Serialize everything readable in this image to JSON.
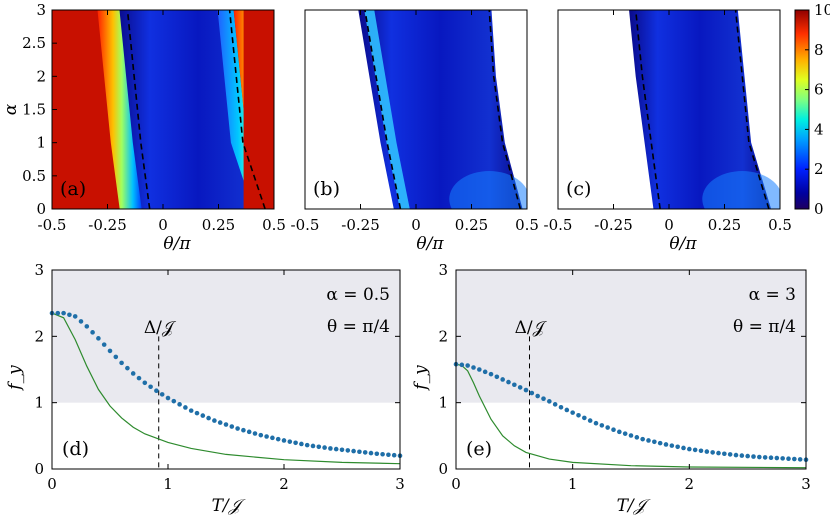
{
  "colors": {
    "shade": "#e9e9ef",
    "dots": "#1f6fa8",
    "line": "#2e8b2e",
    "dashed": "#000000",
    "empty": "#ffffff"
  },
  "chart_data": [
    {
      "type": "heatmap",
      "panel": "(a)",
      "xlabel": "θ/π",
      "ylabel": "α",
      "xlim": [
        -0.5,
        0.5
      ],
      "ylim": [
        0,
        3
      ],
      "xticks": [
        "-0.5",
        "-0.25",
        "0",
        "0.25",
        "0.5"
      ],
      "yticks": [
        "0",
        "0.5",
        "1",
        "1.5",
        "2",
        "2.5",
        "3"
      ],
      "dashed_curves": [
        {
          "alpha": [
            0,
            1,
            2,
            3
          ],
          "theta": [
            -0.06,
            -0.1,
            -0.13,
            -0.16
          ]
        },
        {
          "alpha": [
            0,
            1,
            2,
            3
          ],
          "theta": [
            0.46,
            0.36,
            0.33,
            0.3
          ]
        }
      ]
    },
    {
      "type": "heatmap",
      "panel": "(b)",
      "xlabel": "θ/π",
      "xlim": [
        -0.5,
        0.5
      ],
      "ylim": [
        0,
        3
      ],
      "xticks": [
        "-0.5",
        "-0.25",
        "0",
        "0.25",
        "0.5"
      ],
      "region": {
        "alpha": [
          0,
          1,
          2,
          3
        ],
        "left": [
          -0.1,
          -0.16,
          -0.21,
          -0.26
        ],
        "right": [
          0.48,
          0.4,
          0.36,
          0.34
        ]
      }
    },
    {
      "type": "heatmap",
      "panel": "(c)",
      "xlabel": "θ/π",
      "xlim": [
        -0.5,
        0.5
      ],
      "ylim": [
        0,
        3
      ],
      "xticks": [
        "-0.5",
        "-0.25",
        "0",
        "0.25",
        "0.5"
      ],
      "region": {
        "alpha": [
          0,
          1,
          2,
          3
        ],
        "left": [
          -0.07,
          -0.11,
          -0.15,
          -0.18
        ],
        "right": [
          0.46,
          0.37,
          0.34,
          0.31
        ]
      },
      "colorbar": {
        "min": 0,
        "max": 10,
        "ticks": [
          "0",
          "2",
          "4",
          "6",
          "8",
          "10"
        ],
        "colormap": "jet"
      }
    },
    {
      "type": "scatter",
      "panel": "(d)",
      "xlabel": "T/𝒥",
      "ylabel": "f_y",
      "xlim": [
        0,
        3
      ],
      "ylim": [
        0,
        3
      ],
      "xticks": [
        "0",
        "1",
        "2",
        "3"
      ],
      "yticks": [
        "0",
        "1",
        "2",
        "3"
      ],
      "shaded_above": 1,
      "marker_x": 0.92,
      "marker_label": "Δ/𝒥",
      "annotations": [
        "α = 0.5",
        "θ = π/4"
      ],
      "series": [
        {
          "name": "dots",
          "style": "dotted",
          "x": [
            0,
            0.1,
            0.2,
            0.3,
            0.4,
            0.5,
            0.6,
            0.7,
            0.8,
            0.9,
            1.0,
            1.2,
            1.4,
            1.6,
            1.8,
            2.0,
            2.2,
            2.4,
            2.6,
            2.8,
            3.0
          ],
          "y": [
            2.35,
            2.35,
            2.3,
            2.15,
            1.97,
            1.78,
            1.6,
            1.44,
            1.3,
            1.18,
            1.07,
            0.88,
            0.73,
            0.61,
            0.51,
            0.43,
            0.36,
            0.31,
            0.27,
            0.23,
            0.2
          ]
        },
        {
          "name": "line",
          "style": "solid",
          "x": [
            0,
            0.1,
            0.2,
            0.3,
            0.4,
            0.5,
            0.6,
            0.7,
            0.8,
            1.0,
            1.2,
            1.5,
            2.0,
            2.5,
            3.0
          ],
          "y": [
            2.35,
            2.28,
            1.95,
            1.55,
            1.2,
            0.95,
            0.77,
            0.63,
            0.53,
            0.4,
            0.31,
            0.22,
            0.14,
            0.1,
            0.08
          ]
        }
      ]
    },
    {
      "type": "scatter",
      "panel": "(e)",
      "xlabel": "T/𝒥",
      "xlim": [
        0,
        3
      ],
      "ylim": [
        0,
        3
      ],
      "xticks": [
        "0",
        "1",
        "2",
        "3"
      ],
      "yticks": [
        "0",
        "1",
        "2",
        "3"
      ],
      "shaded_above": 1,
      "marker_x": 0.63,
      "marker_label": "Δ/𝒥",
      "annotations": [
        "α = 3",
        "θ = π/4"
      ],
      "series": [
        {
          "name": "dots",
          "style": "dotted",
          "x": [
            0,
            0.1,
            0.2,
            0.3,
            0.4,
            0.5,
            0.6,
            0.7,
            0.8,
            0.9,
            1.0,
            1.2,
            1.4,
            1.6,
            1.8,
            2.0,
            2.2,
            2.4,
            2.6,
            2.8,
            3.0
          ],
          "y": [
            1.58,
            1.56,
            1.5,
            1.43,
            1.35,
            1.27,
            1.19,
            1.1,
            1.02,
            0.93,
            0.85,
            0.69,
            0.56,
            0.45,
            0.37,
            0.3,
            0.25,
            0.21,
            0.18,
            0.16,
            0.14
          ]
        },
        {
          "name": "line",
          "style": "solid",
          "x": [
            0,
            0.05,
            0.1,
            0.15,
            0.2,
            0.3,
            0.4,
            0.5,
            0.6,
            0.8,
            1.0,
            1.5,
            2.0,
            3.0
          ],
          "y": [
            1.58,
            1.56,
            1.48,
            1.3,
            1.1,
            0.75,
            0.5,
            0.35,
            0.25,
            0.15,
            0.1,
            0.05,
            0.03,
            0.02
          ]
        }
      ]
    }
  ]
}
